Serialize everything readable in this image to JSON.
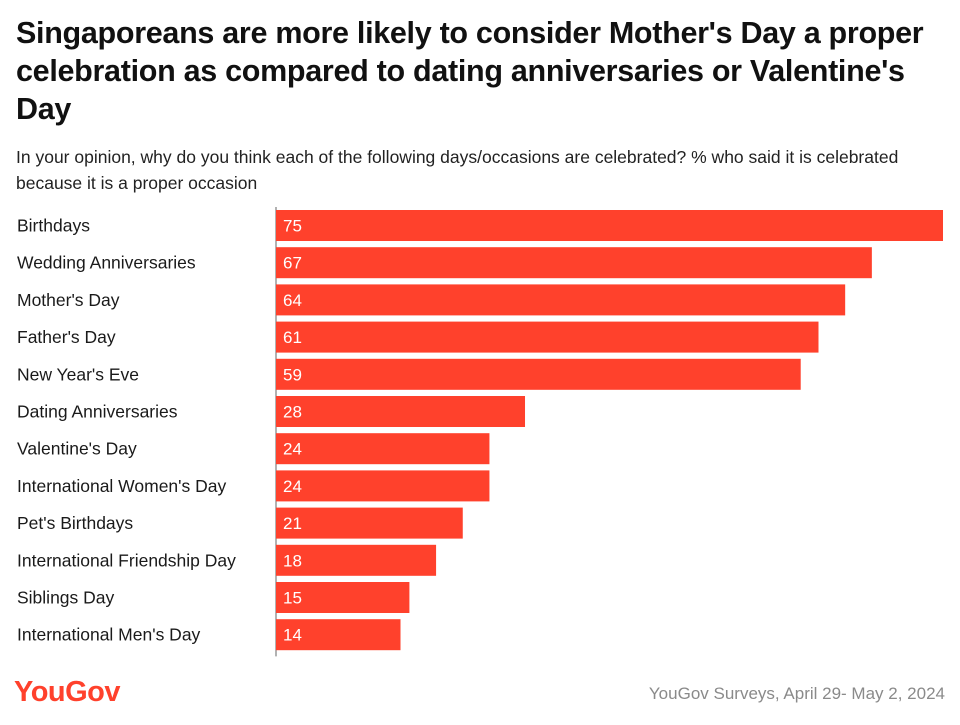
{
  "header": {
    "title": "Singaporeans are more likely to consider Mother's Day a proper celebration as compared to dating anniversaries or Valentine's Day",
    "subtitle": "In your opinion, why do you think each of the following days/occasions are celebrated? % who said it is celebrated because it is a proper occasion"
  },
  "footer": {
    "logo_text": "YouGov",
    "source": "YouGov Surveys, April 29- May 2, 2024"
  },
  "colors": {
    "bar": "#ff412c",
    "logo": "#ff412c",
    "axis": "#666666"
  },
  "chart_data": {
    "type": "bar",
    "orientation": "horizontal",
    "categories": [
      "Birthdays",
      "Wedding Anniversaries",
      "Mother's Day",
      "Father's Day",
      "New Year's Eve",
      "Dating Anniversaries",
      "Valentine's Day",
      "International Women's Day",
      "Pet's Birthdays",
      "International Friendship Day",
      "Siblings Day",
      "International Men's Day"
    ],
    "values": [
      75,
      67,
      64,
      61,
      59,
      28,
      24,
      24,
      21,
      18,
      15,
      14
    ],
    "xlim": [
      0,
      75
    ],
    "grid": false,
    "legend": "none"
  }
}
